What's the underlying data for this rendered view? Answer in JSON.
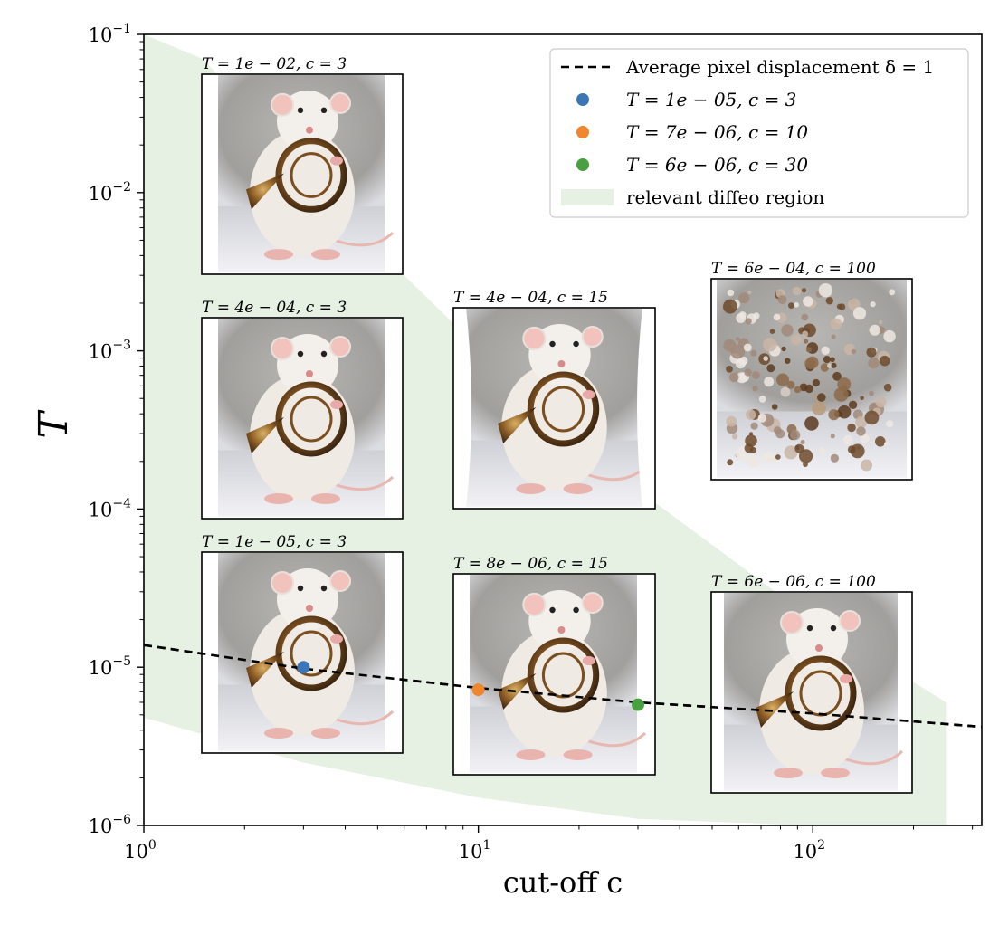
{
  "chart_data": {
    "type": "line",
    "xscale": "log",
    "yscale": "log",
    "xlim": [
      1,
      320
    ],
    "ylim": [
      1e-06,
      0.1
    ],
    "xlabel": "cut-off c",
    "ylabel": "T",
    "x_ticks": [
      {
        "value": 1,
        "base": "10",
        "exp": "0"
      },
      {
        "value": 10,
        "base": "10",
        "exp": "1"
      },
      {
        "value": 100,
        "base": "10",
        "exp": "2"
      }
    ],
    "y_ticks": [
      {
        "value": 1e-06,
        "base": "10",
        "exp": "−6"
      },
      {
        "value": 1e-05,
        "base": "10",
        "exp": "−5"
      },
      {
        "value": 0.0001,
        "base": "10",
        "exp": "−4"
      },
      {
        "value": 0.001,
        "base": "10",
        "exp": "−3"
      },
      {
        "value": 0.01,
        "base": "10",
        "exp": "−2"
      },
      {
        "value": 0.1,
        "base": "10",
        "exp": "−1"
      }
    ],
    "region": {
      "name": "relevant diffeo region",
      "color": "#e6f0e3",
      "upper": [
        [
          1,
          0.1
        ],
        [
          1.5,
          0.07
        ],
        [
          6,
          0.003
        ],
        [
          20,
          0.00025
        ],
        [
          100,
          2e-05
        ],
        [
          250,
          6e-06
        ]
      ],
      "lower": [
        [
          1,
          4.8e-06
        ],
        [
          3,
          2.5e-06
        ],
        [
          10,
          1.5e-06
        ],
        [
          30,
          1.1e-06
        ],
        [
          100,
          1e-06
        ],
        [
          250,
          1e-06
        ]
      ]
    },
    "series": [
      {
        "name": "Average pixel displacement δ = 1",
        "style": "dashed",
        "color": "#000000",
        "x": [
          1,
          3,
          10,
          30,
          100,
          320
        ],
        "y": [
          1.38e-05,
          9.8e-06,
          7.4e-06,
          6e-06,
          5.1e-06,
          4.2e-06
        ]
      }
    ],
    "points": [
      {
        "label": "T = 1e − 05, c = 3",
        "x": 3,
        "y": 1e-05,
        "color": "#3b77b6"
      },
      {
        "label": "T = 7e − 06, c = 10",
        "x": 10,
        "y": 7.2e-06,
        "color": "#f0862e"
      },
      {
        "label": "T = 6e − 06, c = 30",
        "x": 30,
        "y": 5.8e-06,
        "color": "#4aa040"
      }
    ],
    "legend": {
      "position": "top-right",
      "entries": [
        {
          "kind": "line",
          "label": "Average pixel displacement δ = 1"
        },
        {
          "kind": "point",
          "label": "T = 1e − 05, c = 3",
          "color": "#3b77b6"
        },
        {
          "kind": "point",
          "label": "T = 7e − 06, c = 10",
          "color": "#f0862e"
        },
        {
          "kind": "point",
          "label": "T = 6e − 06, c = 30",
          "color": "#4aa040"
        },
        {
          "kind": "patch",
          "label": "relevant diffeo region",
          "color": "#e6f0e3"
        }
      ]
    },
    "thumbnails": [
      {
        "title": "T = 1e − 02, c = 3",
        "distortion": "mild"
      },
      {
        "title": "T = 4e − 04, c = 3",
        "distortion": "mild"
      },
      {
        "title": "T = 1e − 05, c = 3",
        "distortion": "mild"
      },
      {
        "title": "T = 4e − 04, c = 15",
        "distortion": "wavy"
      },
      {
        "title": "T = 8e − 06, c = 15",
        "distortion": "mild"
      },
      {
        "title": "T = 6e − 04, c = 100",
        "distortion": "scrambled"
      },
      {
        "title": "T = 6e − 06, c = 100",
        "distortion": "mild"
      }
    ]
  }
}
